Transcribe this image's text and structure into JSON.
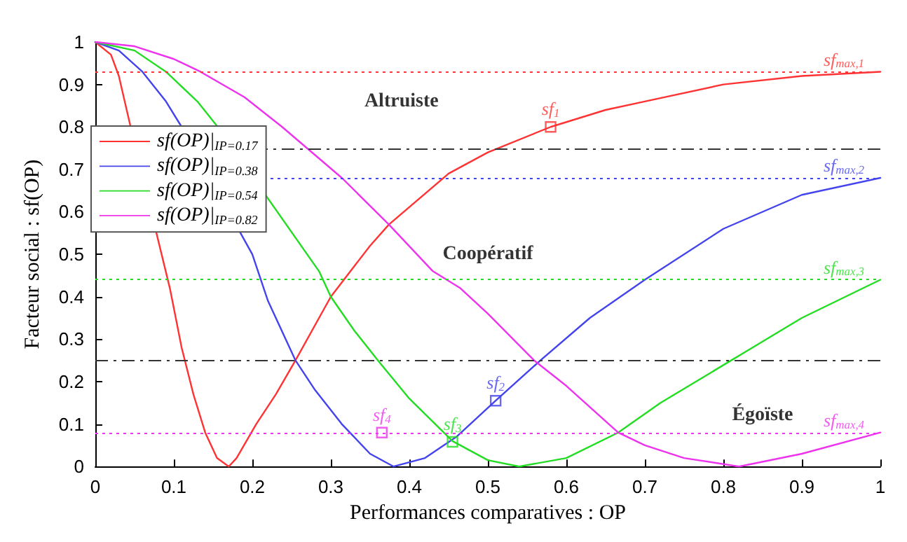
{
  "chart_data": {
    "type": "line",
    "xlabel": "Performances comparatives : OP",
    "ylabel": "Facteur social : sf(OP)",
    "xlim": [
      0,
      1
    ],
    "ylim": [
      0,
      1
    ],
    "xticks": [
      0,
      0.1,
      0.2,
      0.3,
      0.4,
      0.5,
      0.6,
      0.7,
      0.8,
      0.9,
      1
    ],
    "yticks": [
      0,
      0.1,
      0.2,
      0.3,
      0.4,
      0.5,
      0.6,
      0.7,
      0.8,
      0.9,
      1
    ],
    "grid": false,
    "legend": "top left",
    "marker": "none",
    "line_style": "solid",
    "series": [
      {
        "name": "sf(OP)|$_{IP=0.17}$",
        "color": "#ff3333",
        "x": [
          0,
          0.02,
          0.03,
          0.045,
          0.06,
          0.08,
          0.095,
          0.11,
          0.125,
          0.14,
          0.155,
          0.17,
          0.18,
          0.205,
          0.23,
          0.255,
          0.3,
          0.35,
          0.374,
          0.45,
          0.5,
          0.58,
          0.65,
          0.7,
          0.8,
          0.9,
          1
        ],
        "values": [
          1,
          0.97,
          0.92,
          0.8,
          null,
          null,
          0.42,
          0.28,
          0.17,
          0.08,
          0.02,
          0,
          0.02,
          0.1,
          0.17,
          0.25,
          0.4,
          0.52,
          0.57,
          0.69,
          0.74,
          0.8,
          0.84,
          0.86,
          0.9,
          0.92,
          0.93
        ]
      },
      {
        "name": "sf(OP)|$_{IP=0.38}$",
        "color": "#4444ee",
        "x": [
          0,
          0.03,
          0.06,
          0.09,
          0.11,
          0.15,
          0.2,
          0.22,
          0.255,
          0.28,
          0.314,
          0.35,
          0.38,
          0.42,
          0.46,
          0.51,
          0.567,
          0.63,
          0.7,
          0.8,
          0.9,
          1
        ],
        "values": [
          1,
          0.98,
          0.93,
          0.86,
          0.8,
          null,
          0.5,
          0.39,
          0.25,
          0.18,
          0.1,
          0.03,
          0,
          0.02,
          0.07,
          0.155,
          0.25,
          0.35,
          0.44,
          0.56,
          0.64,
          0.68
        ]
      },
      {
        "name": "sf(OP)|$_{IP=0.54}$",
        "color": "#22dd22",
        "x": [
          0,
          0.05,
          0.09,
          0.13,
          0.156,
          0.2,
          0.25,
          0.285,
          0.3,
          0.33,
          0.36,
          0.4,
          0.455,
          0.5,
          0.54,
          0.6,
          0.666,
          0.72,
          0.81,
          0.9,
          1
        ],
        "values": [
          1,
          0.98,
          0.93,
          0.86,
          0.8,
          null,
          null,
          0.46,
          0.4,
          0.32,
          0.25,
          0.16,
          0.06,
          0.015,
          0,
          0.02,
          0.08,
          0.15,
          0.25,
          0.35,
          0.44
        ]
      },
      {
        "name": "sf(OP)|$_{IP=0.82}$",
        "color": "#ee33ee",
        "x": [
          0,
          0.05,
          0.1,
          0.134,
          0.19,
          0.238,
          0.27,
          0.314,
          0.374,
          0.43,
          0.465,
          0.5,
          0.559,
          0.6,
          0.666,
          0.7,
          0.75,
          0.82,
          0.9,
          1
        ],
        "values": [
          1,
          0.99,
          0.96,
          0.93,
          0.87,
          0.8,
          null,
          0.68,
          0.57,
          0.46,
          0.42,
          0.36,
          0.25,
          0.19,
          0.08,
          0.05,
          0.02,
          0,
          0.03,
          0.08
        ]
      },
      {
        "type": "scatter",
        "marker": "square",
        "color": "#ff3333",
        "x": [
          0.58
        ],
        "values": [
          0.8
        ]
      },
      {
        "type": "scatter",
        "marker": "square",
        "color": "#4444ee",
        "x": [
          0.51
        ],
        "values": [
          0.155
        ]
      },
      {
        "type": "scatter",
        "marker": "square",
        "color": "#22dd22",
        "x": [
          0.455
        ],
        "values": [
          0.058
        ]
      },
      {
        "type": "scatter",
        "marker": "square",
        "color": "#ee33ee",
        "x": [
          0.365
        ],
        "values": [
          0.08
        ]
      }
    ],
    "ref_lines": [
      {
        "axis": "y",
        "value": 0.93,
        "label": "sf$_{max,1}$",
        "color": "#ff3333",
        "line_style": "dotted"
      },
      {
        "axis": "y",
        "value": 0.75,
        "color": "#333333",
        "line_style": "dashed"
      },
      {
        "axis": "y",
        "value": 0.68,
        "label": "sf$_{max,2}$",
        "color": "#4444ee",
        "line_style": "dotted"
      },
      {
        "axis": "y",
        "value": 0.44,
        "label": "sf$_{max,3}$",
        "color": "#22dd22",
        "line_style": "dotted"
      },
      {
        "axis": "y",
        "value": 0.25,
        "color": "#333333",
        "line_style": "dashed"
      },
      {
        "axis": "y",
        "value": 0.08,
        "label": "sf$_{max,4}$",
        "color": "#ee33ee",
        "line_style": "dotted"
      }
    ],
    "annotations": [
      "Altruiste",
      "Coopératif",
      "Égoïste",
      {
        "text": "sf$_{1}$",
        "x": 0.58,
        "y": 0.8
      },
      {
        "text": "sf$_{2}$",
        "x": 0.51,
        "y": 0.155
      },
      {
        "text": "sf$_{3}$",
        "x": 0.455,
        "y": 0.058
      },
      {
        "text": "sf$_{4}$",
        "x": 0.365,
        "y": 0.08
      }
    ]
  }
}
